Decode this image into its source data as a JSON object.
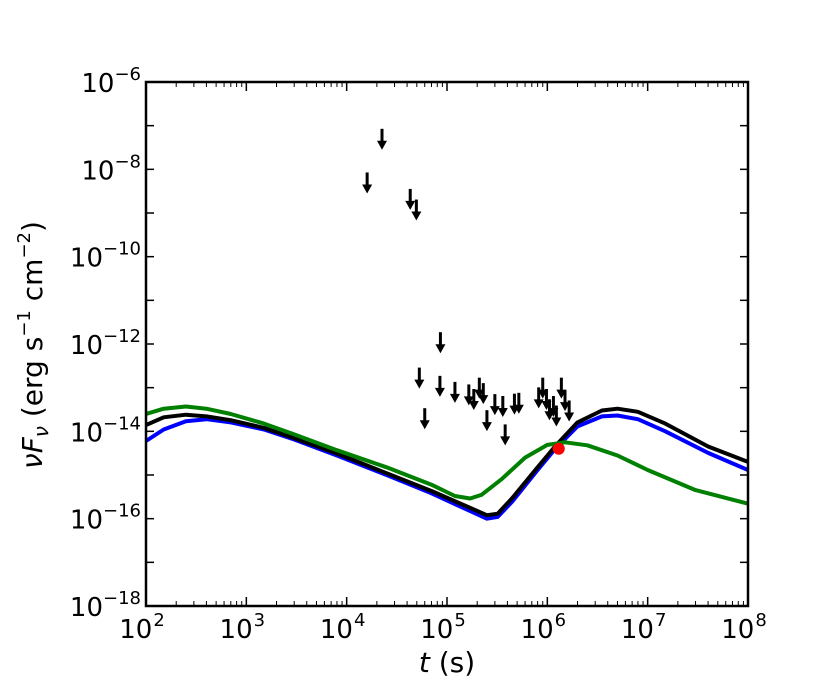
{
  "chart_data": {
    "type": "line",
    "title": "",
    "xlabel": "t (s)",
    "ylabel": "νF_ν (erg s^-1 cm^-2)",
    "x_scale": "log",
    "y_scale": "log",
    "xlim": [
      100,
      100000000
    ],
    "ylim": [
      1e-18,
      1e-06
    ],
    "x_ticks": [
      {
        "value": 100,
        "base": "10",
        "exp": "2"
      },
      {
        "value": 1000,
        "base": "10",
        "exp": "3"
      },
      {
        "value": 10000,
        "base": "10",
        "exp": "4"
      },
      {
        "value": 100000,
        "base": "10",
        "exp": "5"
      },
      {
        "value": 1000000,
        "base": "10",
        "exp": "6"
      },
      {
        "value": 10000000,
        "base": "10",
        "exp": "7"
      },
      {
        "value": 100000000,
        "base": "10",
        "exp": "8"
      }
    ],
    "y_ticks": [
      {
        "value": 1e-06,
        "base": "10",
        "exp": "−6"
      },
      {
        "value": 1e-08,
        "base": "10",
        "exp": "−8"
      },
      {
        "value": 1e-10,
        "base": "10",
        "exp": "−10"
      },
      {
        "value": 1e-12,
        "base": "10",
        "exp": "−12"
      },
      {
        "value": 1e-14,
        "base": "10",
        "exp": "−14"
      },
      {
        "value": 1e-16,
        "base": "10",
        "exp": "−16"
      },
      {
        "value": 1e-18,
        "base": "10",
        "exp": "−18"
      }
    ],
    "grid": false,
    "legend": "none",
    "series": [
      {
        "color": "#0000ff",
        "points": [
          [
            100,
            6e-15
          ],
          [
            150,
            1.1e-14
          ],
          [
            250,
            1.7e-14
          ],
          [
            400,
            1.9e-14
          ],
          [
            700,
            1.6e-14
          ],
          [
            1500,
            1.1e-14
          ],
          [
            3000,
            6.5e-15
          ],
          [
            8000,
            2.8e-15
          ],
          [
            25000,
            1e-15
          ],
          [
            70000,
            3.8e-16
          ],
          [
            150000,
            1.7e-16
          ],
          [
            250000,
            1e-16
          ],
          [
            320000,
            1.1e-16
          ],
          [
            450000,
            2.5e-16
          ],
          [
            800000,
            1.3e-15
          ],
          [
            1200000,
            4e-15
          ],
          [
            2000000,
            1.3e-14
          ],
          [
            3500000,
            2.2e-14
          ],
          [
            5000000,
            2.3e-14
          ],
          [
            8000000,
            1.9e-14
          ],
          [
            15000000,
            1e-14
          ],
          [
            40000000,
            3.2e-15
          ],
          [
            100000000,
            1.3e-15
          ]
        ]
      },
      {
        "color": "#000000",
        "points": [
          [
            100,
            1.4e-14
          ],
          [
            150,
            2.1e-14
          ],
          [
            250,
            2.4e-14
          ],
          [
            400,
            2.2e-14
          ],
          [
            700,
            1.8e-14
          ],
          [
            1500,
            1.2e-14
          ],
          [
            3000,
            7e-15
          ],
          [
            8000,
            3.1e-15
          ],
          [
            25000,
            1.1e-15
          ],
          [
            70000,
            4.3e-16
          ],
          [
            150000,
            2e-16
          ],
          [
            250000,
            1.2e-16
          ],
          [
            320000,
            1.3e-16
          ],
          [
            450000,
            3e-16
          ],
          [
            800000,
            1.5e-15
          ],
          [
            1200000,
            4.6e-15
          ],
          [
            2000000,
            1.6e-14
          ],
          [
            3500000,
            3e-14
          ],
          [
            5000000,
            3.3e-14
          ],
          [
            8000000,
            2.8e-14
          ],
          [
            15000000,
            1.5e-14
          ],
          [
            40000000,
            4.5e-15
          ],
          [
            100000000,
            2e-15
          ]
        ]
      },
      {
        "color": "#008000",
        "points": [
          [
            100,
            2.5e-14
          ],
          [
            150,
            3.3e-14
          ],
          [
            250,
            3.7e-14
          ],
          [
            400,
            3.3e-14
          ],
          [
            700,
            2.5e-14
          ],
          [
            1500,
            1.5e-14
          ],
          [
            3000,
            8.5e-15
          ],
          [
            8000,
            3.7e-15
          ],
          [
            25000,
            1.5e-15
          ],
          [
            70000,
            6e-16
          ],
          [
            120000,
            3.3e-16
          ],
          [
            170000,
            2.9e-16
          ],
          [
            220000,
            3.5e-16
          ],
          [
            350000,
            8e-16
          ],
          [
            600000,
            2.5e-15
          ],
          [
            1000000,
            4.9e-15
          ],
          [
            1500000,
            5.6e-15
          ],
          [
            2500000,
            4.8e-15
          ],
          [
            5000000,
            2.8e-15
          ],
          [
            10000000,
            1.3e-15
          ],
          [
            30000000,
            4.5e-16
          ],
          [
            100000000,
            2.2e-16
          ]
        ]
      }
    ],
    "upper_limits": [
      [
        16000,
        5e-09
      ],
      [
        22500,
        5e-08
      ],
      [
        43000,
        2.1e-09
      ],
      [
        49500,
        1.2e-09
      ],
      [
        86000,
        1.1e-12
      ],
      [
        53000,
        1.7e-13
      ],
      [
        60000,
        2e-14
      ],
      [
        85000,
        1.1e-13
      ],
      [
        120000,
        8e-14
      ],
      [
        165000,
        7e-14
      ],
      [
        185000,
        5.5e-14
      ],
      [
        210000,
        1e-13
      ],
      [
        230000,
        7.5e-14
      ],
      [
        250000,
        1.8e-14
      ],
      [
        300000,
        4.2e-14
      ],
      [
        360000,
        3.8e-14
      ],
      [
        380000,
        8.5e-15
      ],
      [
        470000,
        4.3e-14
      ],
      [
        520000,
        4.5e-14
      ],
      [
        820000,
        6e-14
      ],
      [
        900000,
        1e-13
      ],
      [
        980000,
        5.5e-14
      ],
      [
        1050000,
        3.2e-14
      ],
      [
        1150000,
        3.8e-14
      ],
      [
        1230000,
        2.3e-14
      ],
      [
        1380000,
        1e-13
      ],
      [
        1500000,
        5.2e-14
      ],
      [
        1650000,
        3e-14
      ]
    ],
    "detection": {
      "x": 1300000,
      "y": 4e-15,
      "color": "#ff0000"
    }
  }
}
